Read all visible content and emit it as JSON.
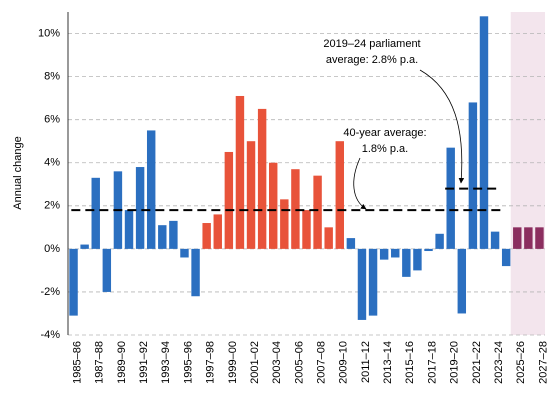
{
  "chart_data": {
    "type": "bar",
    "y_label": "Annual change",
    "categories": [
      "1985–86",
      null,
      "1987–88",
      null,
      "1989–90",
      null,
      "1991–92",
      null,
      "1993–94",
      null,
      "1995–96",
      null,
      "1997–98",
      null,
      "1999–00",
      null,
      "2001–02",
      null,
      "2003–04",
      null,
      "2005–06",
      null,
      "2007–08",
      null,
      "2009–10",
      null,
      "2011–12",
      null,
      "2013–14",
      null,
      "2015–16",
      null,
      "2017–18",
      null,
      "2019–20",
      null,
      "2021–22",
      null,
      "2023–24",
      null,
      "2025–26",
      null,
      "2027–28"
    ],
    "values": [
      -3.1,
      0.2,
      3.3,
      -2.0,
      3.6,
      1.8,
      3.8,
      5.5,
      1.1,
      1.3,
      -0.4,
      -2.2,
      1.2,
      1.6,
      4.5,
      7.1,
      5.0,
      6.5,
      4.0,
      2.3,
      3.7,
      1.8,
      3.4,
      1.0,
      5.0,
      0.5,
      -3.3,
      -3.1,
      -0.5,
      -0.4,
      -1.3,
      -1.0,
      -0.1,
      0.7,
      4.7,
      -3.0,
      6.8,
      10.8,
      0.8,
      -0.8,
      1.0,
      1.0,
      1.0
    ],
    "colors": [
      "#2b6fc0",
      "#2b6fc0",
      "#2b6fc0",
      "#2b6fc0",
      "#2b6fc0",
      "#2b6fc0",
      "#2b6fc0",
      "#2b6fc0",
      "#2b6fc0",
      "#2b6fc0",
      "#2b6fc0",
      "#2b6fc0",
      "#e8533a",
      "#e8533a",
      "#e8533a",
      "#e8533a",
      "#e8533a",
      "#e8533a",
      "#e8533a",
      "#e8533a",
      "#e8533a",
      "#e8533a",
      "#e8533a",
      "#e8533a",
      "#e8533a",
      "#2b6fc0",
      "#2b6fc0",
      "#2b6fc0",
      "#2b6fc0",
      "#2b6fc0",
      "#2b6fc0",
      "#2b6fc0",
      "#2b6fc0",
      "#2b6fc0",
      "#2b6fc0",
      "#2b6fc0",
      "#2b6fc0",
      "#2b6fc0",
      "#2b6fc0",
      "#2b6fc0",
      "#8b2e5f",
      "#8b2e5f",
      "#8b2e5f"
    ],
    "ylim": [
      -4,
      11
    ],
    "yticks": [
      {
        "value": -4,
        "label": "-4%"
      },
      {
        "value": -2,
        "label": "-2%"
      },
      {
        "value": 0,
        "label": "0%"
      },
      {
        "value": 2,
        "label": "2%"
      },
      {
        "value": 4,
        "label": "4%"
      },
      {
        "value": 6,
        "label": "6%"
      },
      {
        "value": 8,
        "label": "8%"
      },
      {
        "value": 10,
        "label": "10%"
      }
    ],
    "grid": true,
    "reference_lines": [
      {
        "value": 2.8
      },
      {
        "value": 1.8
      }
    ],
    "annotations": [
      {
        "lines": [
          "2019–24 parliament",
          "average: 2.8% p.a."
        ]
      },
      {
        "lines": [
          "40-year average:",
          "1.8% p.a."
        ]
      }
    ]
  }
}
